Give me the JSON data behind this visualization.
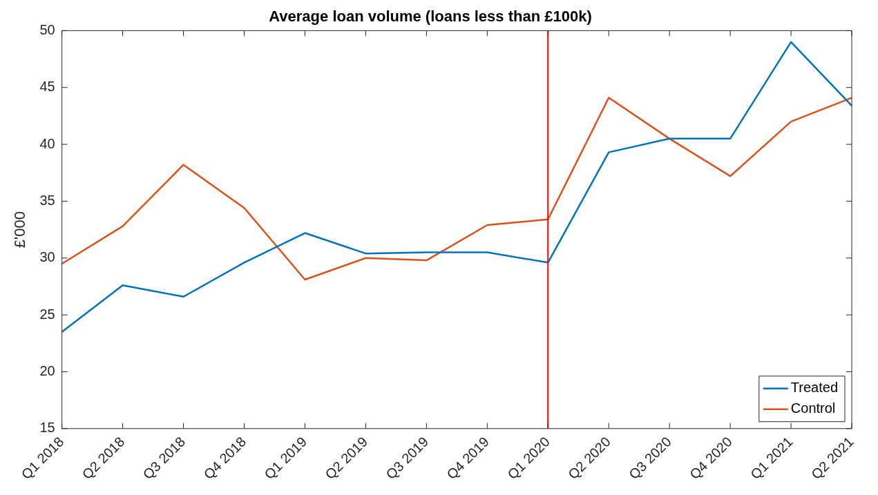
{
  "chart_data": {
    "type": "line",
    "title": "Average loan volume (loans less than £100k)",
    "ylabel": "£'000",
    "categories": [
      "Q1 2018",
      "Q2 2018",
      "Q3 2018",
      "Q4 2018",
      "Q1 2019",
      "Q2 2019",
      "Q3 2019",
      "Q4 2019",
      "Q1 2020",
      "Q2 2020",
      "Q3 2020",
      "Q4 2020",
      "Q1 2021",
      "Q2 2021"
    ],
    "series": [
      {
        "name": "Treated",
        "color": "#0072bd",
        "values": [
          23.5,
          27.6,
          26.6,
          29.6,
          32.2,
          30.4,
          30.5,
          30.5,
          29.6,
          39.3,
          40.5,
          40.5,
          49.0,
          43.4
        ]
      },
      {
        "name": "Control",
        "color": "#d95319",
        "values": [
          29.5,
          32.8,
          38.2,
          34.4,
          28.1,
          30.0,
          29.8,
          32.9,
          33.4,
          44.1,
          40.5,
          37.2,
          42.0,
          44.1
        ]
      }
    ],
    "ylim": [
      15,
      50
    ],
    "yticks": [
      15,
      20,
      25,
      30,
      35,
      40,
      45,
      50
    ],
    "ref_lines": [
      {
        "axis": "x",
        "value": "Q1 2020",
        "color": "#ff0000"
      }
    ],
    "legend": "bottom right",
    "marker": "none",
    "line_style": "solid"
  }
}
